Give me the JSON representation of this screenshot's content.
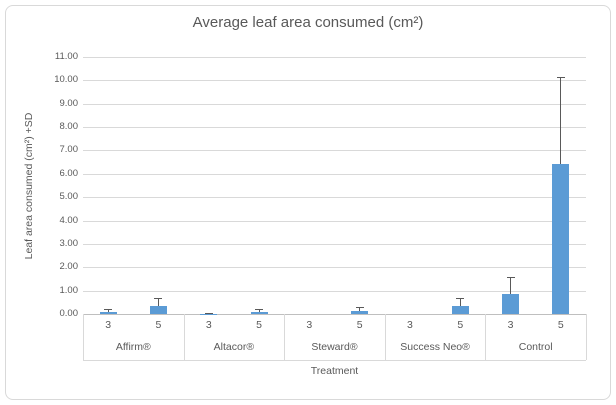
{
  "chart_data": {
    "type": "bar",
    "title": "Average leaf area consumed (cm²)",
    "xlabel": "Treatment",
    "ylabel": "Leaf area consumed (cm²) +SD",
    "ylim": [
      0,
      11
    ],
    "ytick_labels": [
      "11.00",
      "10.00",
      "9.00",
      "8.00",
      "7.00",
      "6.00",
      "5.00",
      "4.00",
      "3.00",
      "2.00",
      "1.00",
      "0.00"
    ],
    "grid": true,
    "legend": "none",
    "categories": [
      "Affirm®",
      "Altacor®",
      "Steward®",
      "Success Neo®",
      "Control"
    ],
    "subcategory_labels": [
      "3",
      "5"
    ],
    "series": [
      {
        "name": "3",
        "values": [
          0.09,
          0.02,
          0,
          0,
          0.86
        ],
        "error_plus_top": [
          0.22,
          0.05,
          null,
          null,
          1.58
        ]
      },
      {
        "name": "5",
        "values": [
          0.33,
          0.1,
          0.13,
          0.35,
          6.43
        ],
        "error_plus_top": [
          0.7,
          0.2,
          0.3,
          0.68,
          10.15
        ]
      }
    ],
    "colors": {
      "bar": "#5B9BD5",
      "error_bar": "#595959",
      "gridline": "#D9D9D9",
      "axis_line": "#BFBFBF",
      "text": "#595959",
      "border": "#D9D9D9"
    }
  }
}
